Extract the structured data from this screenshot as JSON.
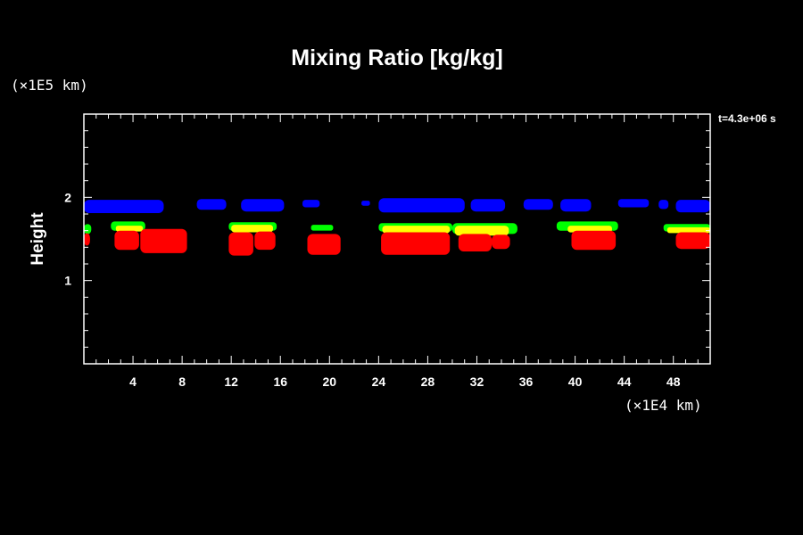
{
  "chart_data": {
    "type": "heatmap",
    "title": "Mixing Ratio [kg/kg]",
    "ylabel": "Height",
    "xlabel": "",
    "x_unit": "(×1E4 km)",
    "y_unit": "(×1E5 km)",
    "time_label": "t=4.3e+06 s",
    "xlim": [
      0,
      51
    ],
    "ylim": [
      0,
      3
    ],
    "xticks": [
      4,
      8,
      12,
      16,
      20,
      24,
      28,
      32,
      36,
      40,
      44,
      48
    ],
    "yticks": [
      1,
      2
    ],
    "colors": {
      "background": "#000000",
      "axes": "#ffffff",
      "level_low": "#ff0000",
      "level_mid": "#ffff00",
      "level_high": "#00ff00",
      "upper_layer": "#0000ff"
    },
    "cloud_regions": [
      {
        "level": "upper_layer",
        "x": [
          0,
          6.5
        ],
        "y": [
          1.81,
          1.97
        ]
      },
      {
        "level": "upper_layer",
        "x": [
          9.2,
          11.6
        ],
        "y": [
          1.85,
          1.98
        ]
      },
      {
        "level": "upper_layer",
        "x": [
          12.8,
          16.3
        ],
        "y": [
          1.83,
          1.98
        ]
      },
      {
        "level": "upper_layer",
        "x": [
          17.8,
          19.2
        ],
        "y": [
          1.88,
          1.97
        ]
      },
      {
        "level": "upper_layer",
        "x": [
          22.6,
          23.3
        ],
        "y": [
          1.9,
          1.96
        ]
      },
      {
        "level": "upper_layer",
        "x": [
          24.0,
          31.0
        ],
        "y": [
          1.82,
          1.99
        ]
      },
      {
        "level": "upper_layer",
        "x": [
          31.5,
          34.3
        ],
        "y": [
          1.83,
          1.98
        ]
      },
      {
        "level": "upper_layer",
        "x": [
          35.8,
          38.2
        ],
        "y": [
          1.85,
          1.98
        ]
      },
      {
        "level": "upper_layer",
        "x": [
          38.8,
          41.3
        ],
        "y": [
          1.83,
          1.98
        ]
      },
      {
        "level": "upper_layer",
        "x": [
          43.5,
          46.0
        ],
        "y": [
          1.88,
          1.98
        ]
      },
      {
        "level": "upper_layer",
        "x": [
          46.8,
          47.6
        ],
        "y": [
          1.86,
          1.97
        ]
      },
      {
        "level": "upper_layer",
        "x": [
          48.2,
          51.0
        ],
        "y": [
          1.82,
          1.97
        ]
      },
      {
        "level": "level_high",
        "x": [
          0,
          0.6
        ],
        "y": [
          1.56,
          1.68
        ]
      },
      {
        "level": "level_high",
        "x": [
          2.2,
          5.0
        ],
        "y": [
          1.6,
          1.71
        ]
      },
      {
        "level": "level_high",
        "x": [
          11.8,
          15.7
        ],
        "y": [
          1.6,
          1.7
        ]
      },
      {
        "level": "level_high",
        "x": [
          18.5,
          20.3
        ],
        "y": [
          1.6,
          1.67
        ]
      },
      {
        "level": "level_high",
        "x": [
          24.0,
          30.0
        ],
        "y": [
          1.59,
          1.69
        ]
      },
      {
        "level": "level_high",
        "x": [
          30.0,
          35.3
        ],
        "y": [
          1.56,
          1.69
        ]
      },
      {
        "level": "level_high",
        "x": [
          38.5,
          43.5
        ],
        "y": [
          1.6,
          1.71
        ]
      },
      {
        "level": "level_high",
        "x": [
          47.2,
          51.0
        ],
        "y": [
          1.59,
          1.68
        ]
      },
      {
        "level": "level_mid",
        "x": [
          2.6,
          4.8
        ],
        "y": [
          1.59,
          1.66
        ]
      },
      {
        "level": "level_mid",
        "x": [
          12.0,
          15.4
        ],
        "y": [
          1.58,
          1.67
        ]
      },
      {
        "level": "level_mid",
        "x": [
          24.3,
          29.8
        ],
        "y": [
          1.57,
          1.66
        ]
      },
      {
        "level": "level_mid",
        "x": [
          30.2,
          34.6
        ],
        "y": [
          1.54,
          1.66
        ]
      },
      {
        "level": "level_mid",
        "x": [
          39.4,
          43.0
        ],
        "y": [
          1.58,
          1.66
        ]
      },
      {
        "level": "level_mid",
        "x": [
          47.5,
          51.0
        ],
        "y": [
          1.57,
          1.64
        ]
      },
      {
        "level": "level_low",
        "x": [
          0,
          0.5
        ],
        "y": [
          1.42,
          1.57
        ]
      },
      {
        "level": "level_low",
        "x": [
          2.5,
          4.5
        ],
        "y": [
          1.37,
          1.6
        ]
      },
      {
        "level": "level_low",
        "x": [
          4.6,
          8.4
        ],
        "y": [
          1.33,
          1.62
        ]
      },
      {
        "level": "level_low",
        "x": [
          11.8,
          13.8
        ],
        "y": [
          1.3,
          1.58
        ]
      },
      {
        "level": "level_low",
        "x": [
          13.9,
          15.6
        ],
        "y": [
          1.37,
          1.59
        ]
      },
      {
        "level": "level_low",
        "x": [
          18.2,
          20.9
        ],
        "y": [
          1.31,
          1.56
        ]
      },
      {
        "level": "level_low",
        "x": [
          24.2,
          29.8
        ],
        "y": [
          1.31,
          1.58
        ]
      },
      {
        "level": "level_low",
        "x": [
          30.5,
          33.2
        ],
        "y": [
          1.35,
          1.56
        ]
      },
      {
        "level": "level_low",
        "x": [
          33.2,
          34.7
        ],
        "y": [
          1.38,
          1.55
        ]
      },
      {
        "level": "level_low",
        "x": [
          39.7,
          43.3
        ],
        "y": [
          1.37,
          1.6
        ]
      },
      {
        "level": "level_low",
        "x": [
          48.2,
          51.0
        ],
        "y": [
          1.38,
          1.58
        ]
      }
    ]
  }
}
